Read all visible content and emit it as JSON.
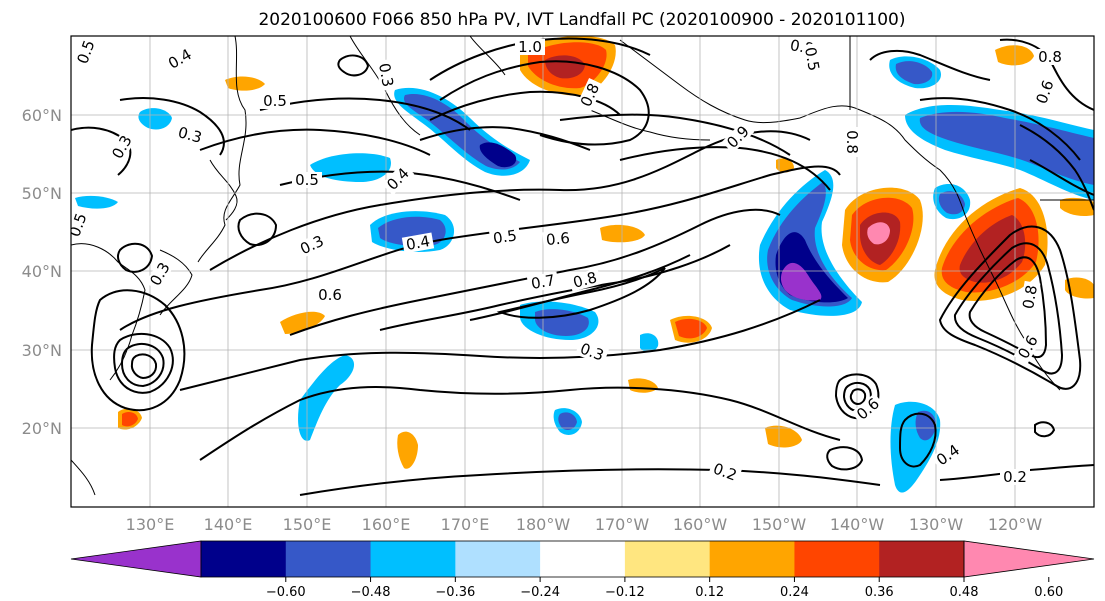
{
  "title": "2020100600 F066 850 hPa PV, IVT Landfall PC (2020100900 - 2020101100)",
  "lat_labels": [
    "60°N",
    "50°N",
    "40°N",
    "30°N",
    "20°N"
  ],
  "lon_labels": [
    "130°E",
    "140°E",
    "150°E",
    "160°E",
    "170°E",
    "180°W",
    "170°W",
    "160°W",
    "150°W",
    "140°W",
    "130°W",
    "120°W"
  ],
  "colorbar": {
    "colors": [
      "#9932CC",
      "#00008B",
      "#3658C8",
      "#00BFFF",
      "#AFE0FF",
      "#FFFFFF",
      "#FFE680",
      "#FFA500",
      "#FF4500",
      "#B22222",
      "#FF88B0"
    ],
    "tick_labels": [
      "−0.60",
      "−0.48",
      "−0.36",
      "−0.24",
      "−0.12",
      "0.12",
      "0.24",
      "0.36",
      "0.48",
      "0.60"
    ]
  },
  "contour_labels": [
    "0.5",
    "0.4",
    "0.3",
    "0.5",
    "0.3",
    "1.0",
    "0.8",
    "0.8",
    "0.5",
    "0.4",
    "0.5",
    "0.4",
    "0.3",
    "0.5",
    "0.6",
    "0.6",
    "0.7",
    "0.8",
    "0.3",
    "0.2",
    "0.2",
    "0.4",
    "0.6",
    "0.6",
    "0.8",
    "0.8",
    "0.6",
    "0.9",
    "0.5",
    "0.3",
    "0.8",
    "0.3"
  ]
}
